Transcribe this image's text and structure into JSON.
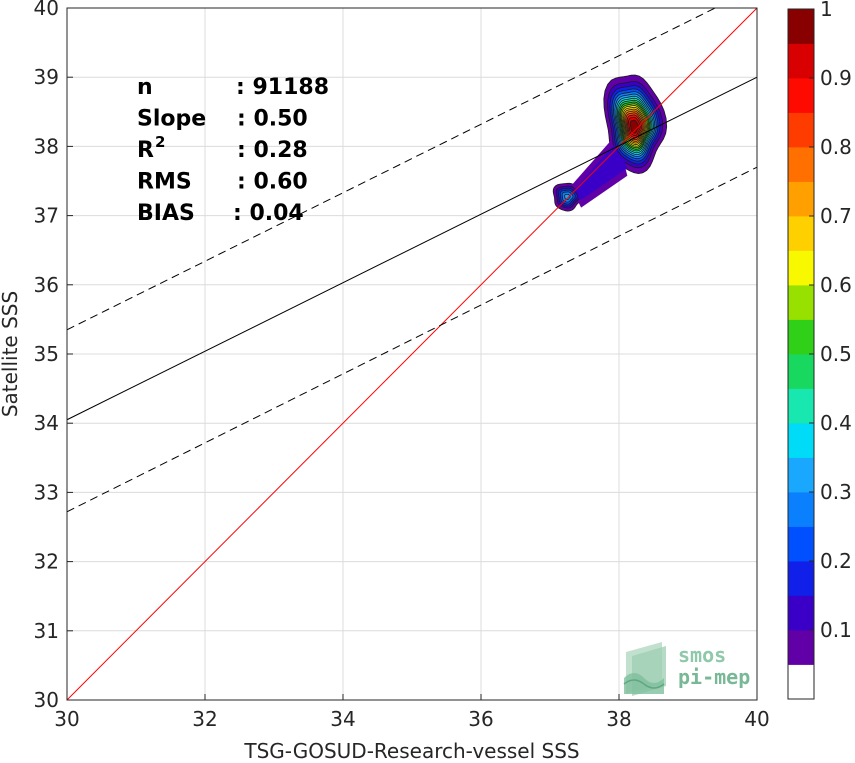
{
  "chart_data": {
    "type": "heatmap",
    "subtype": "density-contour-scatter",
    "xlabel": "TSG-GOSUD-Research-vessel SSS",
    "ylabel": "Satellite SSS",
    "xlim": [
      30,
      40
    ],
    "ylim": [
      30,
      40
    ],
    "xticks": [
      "30",
      "32",
      "34",
      "36",
      "38",
      "40"
    ],
    "yticks": [
      "30",
      "31",
      "32",
      "33",
      "34",
      "35",
      "36",
      "37",
      "38",
      "39",
      "40"
    ],
    "grid": true,
    "stats": [
      {
        "label": "n",
        "value": ": 91188"
      },
      {
        "label": "Slope",
        "value": ": 0.50"
      },
      {
        "label": "R",
        "sup": "2",
        "value": ": 0.28"
      },
      {
        "label": "RMS",
        "value": ": 0.60"
      },
      {
        "label": "BIAS",
        "value": ": 0.04"
      }
    ],
    "lines": [
      {
        "role": "one-to-one",
        "color": "#ff0000",
        "style": "solid",
        "points": [
          [
            30,
            30
          ],
          [
            40,
            40
          ]
        ]
      },
      {
        "role": "regression",
        "color": "#000000",
        "style": "solid",
        "points": [
          [
            30,
            34.05
          ],
          [
            40,
            39.0
          ]
        ]
      },
      {
        "role": "upper-bound",
        "color": "#000000",
        "style": "dashed",
        "points": [
          [
            30,
            35.35
          ],
          [
            40,
            40.3
          ]
        ]
      },
      {
        "role": "lower-bound",
        "color": "#000000",
        "style": "dashed",
        "points": [
          [
            30,
            32.72
          ],
          [
            40,
            37.7
          ]
        ]
      }
    ],
    "density_peaks": [
      {
        "x": 38.22,
        "y": 38.28,
        "level": 1.0
      },
      {
        "x": 37.25,
        "y": 37.27,
        "level": 0.32
      }
    ],
    "colorbar": {
      "ticks": [
        "0.1",
        "0.2",
        "0.3",
        "0.4",
        "0.5",
        "0.6",
        "0.7",
        "0.8",
        "0.9",
        "1"
      ],
      "levels": [
        0.05,
        0.1,
        0.15,
        0.2,
        0.25,
        0.3,
        0.35,
        0.4,
        0.45,
        0.5,
        0.55,
        0.6,
        0.65,
        0.7,
        0.75,
        0.8,
        0.85,
        0.9,
        0.95,
        1.0
      ],
      "colors": [
        "#ffffff",
        "#6200a8",
        "#3a00c8",
        "#1020e8",
        "#0050ff",
        "#0a80ff",
        "#1aa8ff",
        "#00dcf8",
        "#18e8b0",
        "#18d860",
        "#30d018",
        "#98e000",
        "#f8f800",
        "#ffd000",
        "#ffa000",
        "#ff7000",
        "#ff3c00",
        "#ff0a00",
        "#d80000",
        "#880000"
      ]
    }
  },
  "watermark": {
    "line1": "smos",
    "line2": "pi-mep"
  }
}
